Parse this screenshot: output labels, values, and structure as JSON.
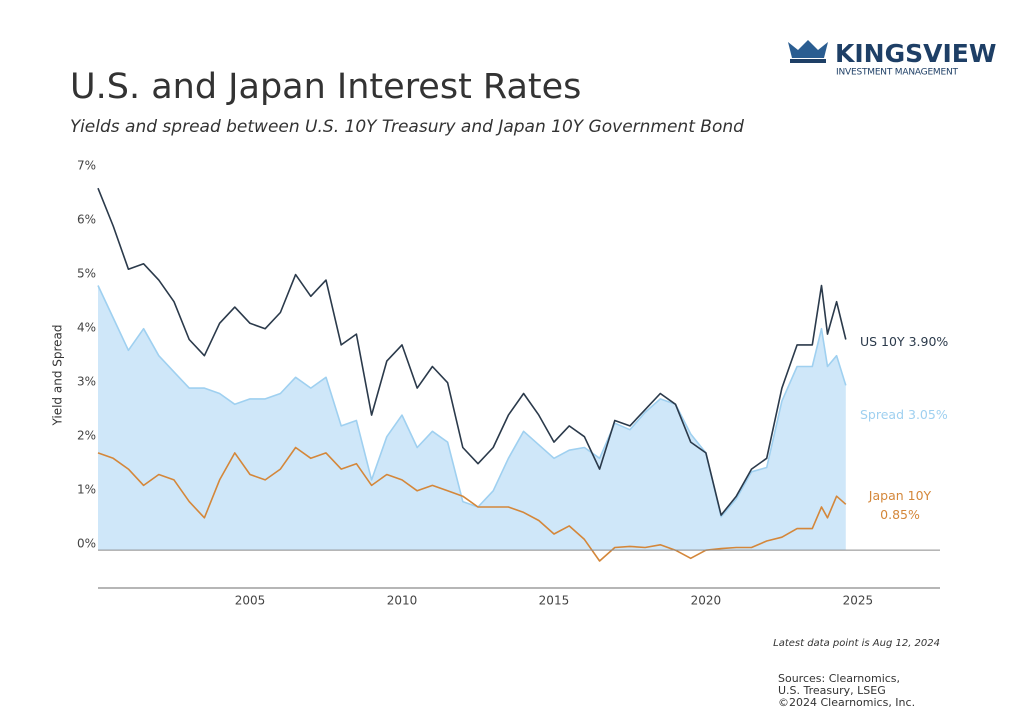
{
  "brand": {
    "name": "KINGSVIEW",
    "tagline": "INVESTMENT MANAGEMENT"
  },
  "chart_data": {
    "type": "line",
    "title": "U.S. and Japan Interest Rates",
    "subtitle": "Yields and spread between U.S. 10Y Treasury and Japan 10Y Government Bond",
    "y_label": "Yield and Spread",
    "x": [
      2000,
      2000.5,
      2001,
      2001.5,
      2002,
      2002.5,
      2003,
      2003.5,
      2004,
      2004.5,
      2005,
      2005.5,
      2006,
      2006.5,
      2007,
      2007.5,
      2008,
      2008.5,
      2009,
      2009.5,
      2010,
      2010.5,
      2011,
      2011.5,
      2012,
      2012.5,
      2013,
      2013.5,
      2014,
      2014.5,
      2015,
      2015.5,
      2016,
      2016.5,
      2017,
      2017.5,
      2018,
      2018.5,
      2019,
      2019.5,
      2020,
      2020.5,
      2021,
      2021.5,
      2022,
      2022.5,
      2023,
      2023.5,
      2023.8,
      2024,
      2024.3,
      2024.6
    ],
    "series": [
      {
        "name": "Spread",
        "fill": true,
        "color": "#9fd0f0",
        "area_color": "#cfe7f9",
        "label_lines": [
          "Spread 3.05%"
        ],
        "values": [
          4.9,
          4.3,
          3.7,
          4.1,
          3.6,
          3.3,
          3.0,
          3.0,
          2.9,
          2.7,
          2.8,
          2.8,
          2.9,
          3.2,
          3.0,
          3.2,
          2.3,
          2.4,
          1.3,
          2.1,
          2.5,
          1.9,
          2.2,
          2.0,
          0.9,
          0.8,
          1.1,
          1.7,
          2.2,
          1.95,
          1.7,
          1.85,
          1.9,
          1.7,
          2.35,
          2.23,
          2.55,
          2.8,
          2.7,
          2.15,
          1.8,
          0.62,
          0.95,
          1.45,
          1.53,
          2.76,
          3.4,
          3.4,
          4.1,
          3.4,
          3.6,
          3.05
        ]
      },
      {
        "name": "US 10Y",
        "color": "#2b3a4b",
        "label_lines": [
          "US 10Y 3.90%"
        ],
        "values": [
          6.7,
          6.0,
          5.2,
          5.3,
          5.0,
          4.6,
          3.9,
          3.6,
          4.2,
          4.5,
          4.2,
          4.1,
          4.4,
          5.1,
          4.7,
          5.0,
          3.8,
          4.0,
          2.5,
          3.5,
          3.8,
          3.0,
          3.4,
          3.1,
          1.9,
          1.6,
          1.9,
          2.5,
          2.9,
          2.5,
          2.0,
          2.3,
          2.1,
          1.5,
          2.4,
          2.3,
          2.6,
          2.9,
          2.7,
          2.0,
          1.8,
          0.65,
          1.0,
          1.5,
          1.7,
          3.0,
          3.8,
          3.8,
          4.9,
          4.0,
          4.6,
          3.9
        ]
      },
      {
        "name": "Japan 10Y",
        "color": "#d4873a",
        "label_lines": [
          "Japan 10Y",
          "0.85%"
        ],
        "values": [
          1.8,
          1.7,
          1.5,
          1.2,
          1.4,
          1.3,
          0.9,
          0.6,
          1.3,
          1.8,
          1.4,
          1.3,
          1.5,
          1.9,
          1.7,
          1.8,
          1.5,
          1.6,
          1.2,
          1.4,
          1.3,
          1.1,
          1.2,
          1.1,
          1.0,
          0.8,
          0.8,
          0.8,
          0.7,
          0.55,
          0.3,
          0.45,
          0.2,
          -0.2,
          0.05,
          0.07,
          0.05,
          0.1,
          0.0,
          -0.15,
          0.0,
          0.03,
          0.05,
          0.05,
          0.17,
          0.24,
          0.4,
          0.4,
          0.8,
          0.6,
          1.0,
          0.85
        ]
      }
    ],
    "xlim": [
      2000,
      2027.7
    ],
    "xticks": [
      2005,
      2010,
      2015,
      2020,
      2025
    ],
    "ylim": [
      -0.7,
      7
    ],
    "yticks": [
      {
        "value": 0,
        "label": "0%"
      },
      {
        "value": 1,
        "label": "1%"
      },
      {
        "value": 2,
        "label": "2%"
      },
      {
        "value": 3,
        "label": "3%"
      },
      {
        "value": 4,
        "label": "4%"
      },
      {
        "value": 5,
        "label": "5%"
      },
      {
        "value": 6,
        "label": "6%"
      },
      {
        "value": 7,
        "label": "7%"
      }
    ],
    "grid": false,
    "note": "Latest data point is Aug 12, 2024",
    "sources": [
      "Sources: Clearnomics,",
      "U.S. Treasury, LSEG",
      "©2024 Clearnomics, Inc."
    ]
  }
}
